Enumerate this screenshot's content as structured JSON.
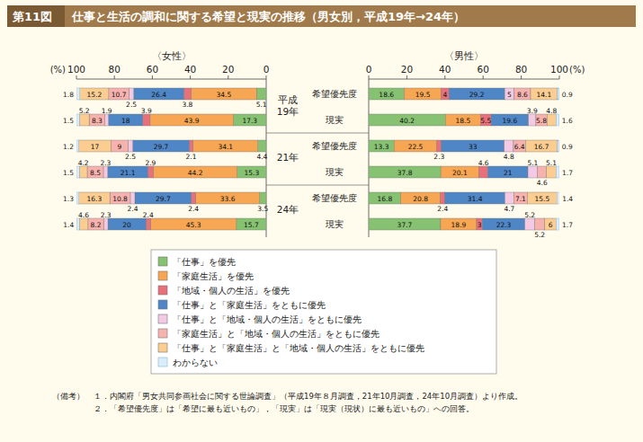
{
  "chart_data": {
    "type": "bar",
    "orientation": "horizontal",
    "stacked": true,
    "data_labels": true,
    "figure_number": "第11図",
    "title": "仕事と生活の調和に関する希望と現実の推移（男女別，平成19年→24年）",
    "axis_unit": "(%)",
    "xlim": [
      0,
      100
    ],
    "xticks": [
      0,
      20,
      40,
      60,
      80,
      100
    ],
    "groups": [
      "平成19年",
      "21年",
      "24年"
    ],
    "categories": [
      "希望優先度",
      "現実",
      "希望優先度",
      "現実",
      "希望優先度",
      "現実"
    ],
    "series": [
      {
        "name": "「仕事」を優先",
        "color": "#86c271"
      },
      {
        "name": "「家庭生活」を優先",
        "color": "#f7a654"
      },
      {
        "name": "「地域・個人の生活」を優先",
        "color": "#e8707a"
      },
      {
        "name": "「仕事」と「家庭生活」をともに優先",
        "color": "#4f86c6"
      },
      {
        "name": "「仕事」と「地域・個人の生活」をともに優先",
        "color": "#f3c9e3"
      },
      {
        "name": "「家庭生活」と「地域・個人の生活」をともに優先",
        "color": "#f7b2ae"
      },
      {
        "name": "「仕事」と「家庭生活」と「地域・個人の生活」をともに優先",
        "color": "#fbcd90"
      },
      {
        "name": "わからない",
        "color": "#dcedf9"
      }
    ],
    "panels": [
      {
        "label": "〈女性〉",
        "series_values": [
          [
            5.1,
            17.3,
            4.4,
            15.3,
            3.5,
            15.7
          ],
          [
            34.5,
            43.9,
            34.1,
            44.2,
            33.6,
            45.3
          ],
          [
            3.8,
            3.9,
            2.1,
            2.9,
            2.4,
            2.4
          ],
          [
            26.4,
            18.0,
            29.7,
            21.1,
            29.7,
            20.0
          ],
          [
            2.5,
            1.9,
            2.5,
            2.3,
            2.4,
            2.3
          ],
          [
            10.7,
            8.3,
            9.0,
            8.5,
            10.8,
            8.2
          ],
          [
            15.2,
            5.2,
            17.0,
            4.2,
            16.3,
            4.6
          ],
          [
            1.8,
            1.5,
            1.2,
            1.5,
            1.3,
            1.4
          ]
        ]
      },
      {
        "label": "〈男性〉",
        "series_values": [
          [
            18.6,
            40.2,
            13.3,
            37.8,
            16.8,
            37.7
          ],
          [
            19.5,
            18.5,
            22.5,
            20.1,
            20.8,
            18.9
          ],
          [
            4.0,
            5.5,
            2.3,
            4.6,
            2.4,
            3.0
          ],
          [
            29.2,
            19.6,
            33.0,
            21.0,
            31.4,
            22.3
          ],
          [
            5.0,
            3.9,
            4.8,
            5.1,
            4.7,
            5.2
          ],
          [
            8.6,
            5.8,
            6.4,
            4.6,
            7.1,
            5.2
          ],
          [
            14.1,
            4.8,
            16.7,
            5.1,
            15.5,
            6.0
          ],
          [
            0.9,
            1.6,
            0.9,
            1.7,
            1.4,
            1.7
          ]
        ]
      }
    ],
    "notes_label": "（備考）",
    "notes": [
      "１．内閣府「男女共同参画社会に関する世論調査」（平成19年８月調査，21年10月調査，24年10月調査）より作成。",
      "２．「希望優先度」は「希望に最も近いもの」，「現実」は「現実（現状）に最も近いもの」への回答。"
    ]
  }
}
